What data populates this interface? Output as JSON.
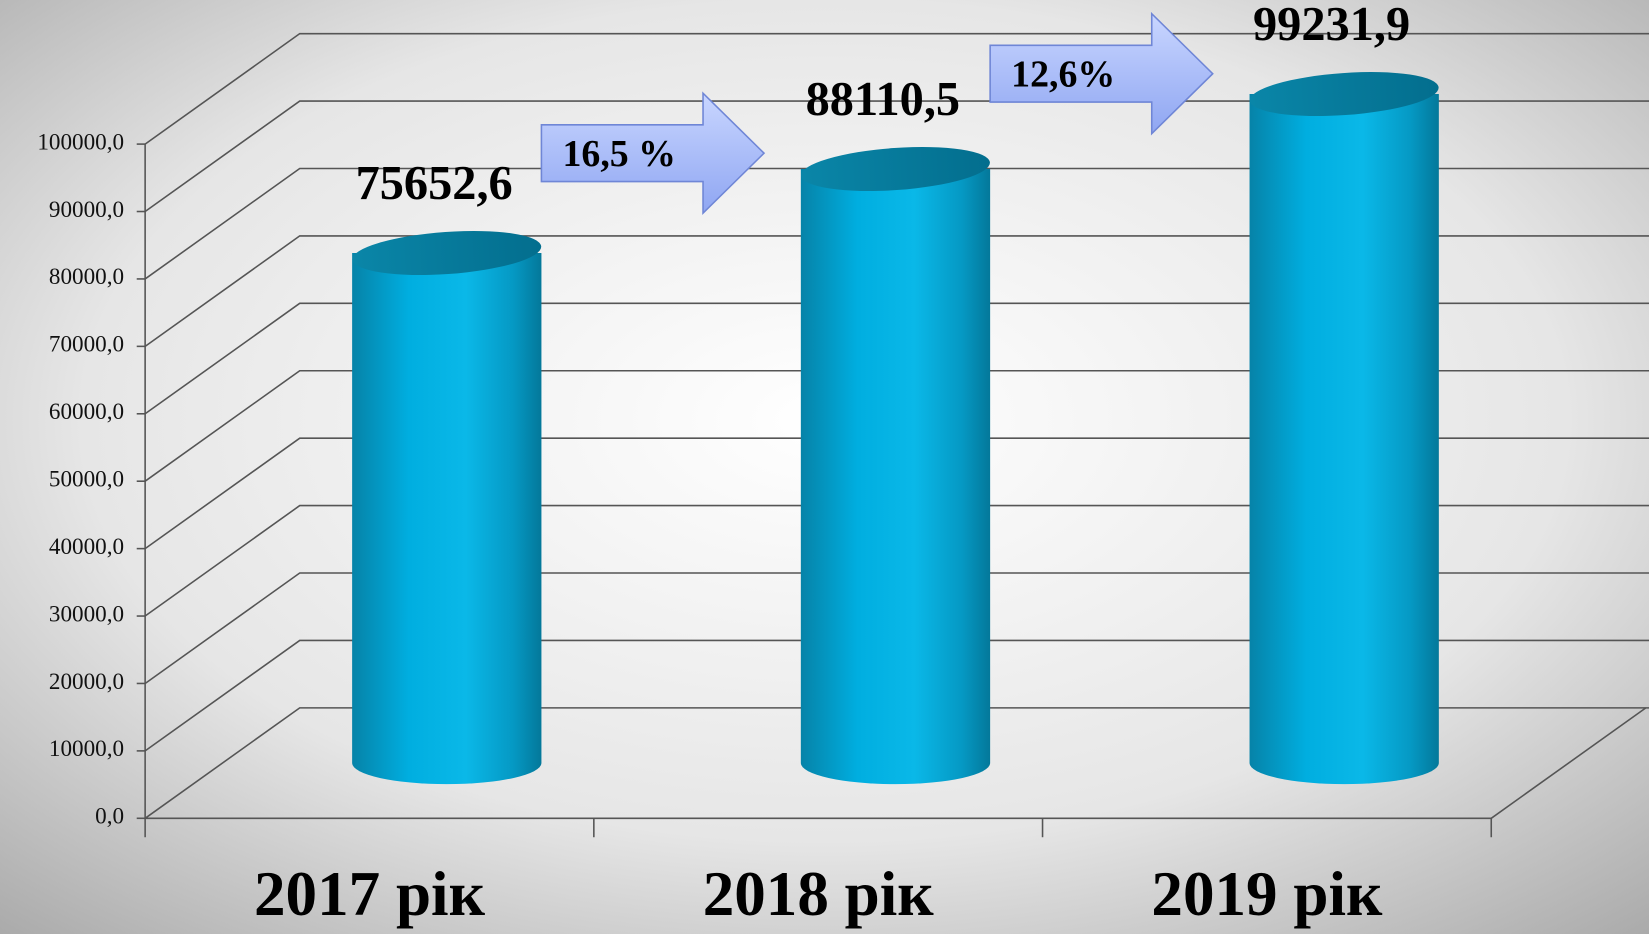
{
  "chart_data": {
    "type": "bar",
    "categories": [
      "2017 рік",
      "2018 рік",
      "2019 рік"
    ],
    "values": [
      75652.6,
      88110.5,
      99231.9
    ],
    "value_labels": [
      "75652,6",
      "88110,5",
      "99231,9"
    ],
    "color": "#00aee0",
    "ylim": [
      0,
      100000
    ],
    "yticks": [
      {
        "value": 0,
        "label": "0,0"
      },
      {
        "value": 10000,
        "label": "10000,0"
      },
      {
        "value": 20000,
        "label": "20000,0"
      },
      {
        "value": 30000,
        "label": "30000,0"
      },
      {
        "value": 40000,
        "label": "40000,0"
      },
      {
        "value": 50000,
        "label": "50000,0"
      },
      {
        "value": 60000,
        "label": "60000,0"
      },
      {
        "value": 70000,
        "label": "70000,0"
      },
      {
        "value": 80000,
        "label": "80000,0"
      },
      {
        "value": 90000,
        "label": "90000,0"
      },
      {
        "value": 100000,
        "label": "100000,0"
      }
    ],
    "grid": true,
    "annotations": [
      "16,5 %",
      "12,6%"
    ]
  }
}
